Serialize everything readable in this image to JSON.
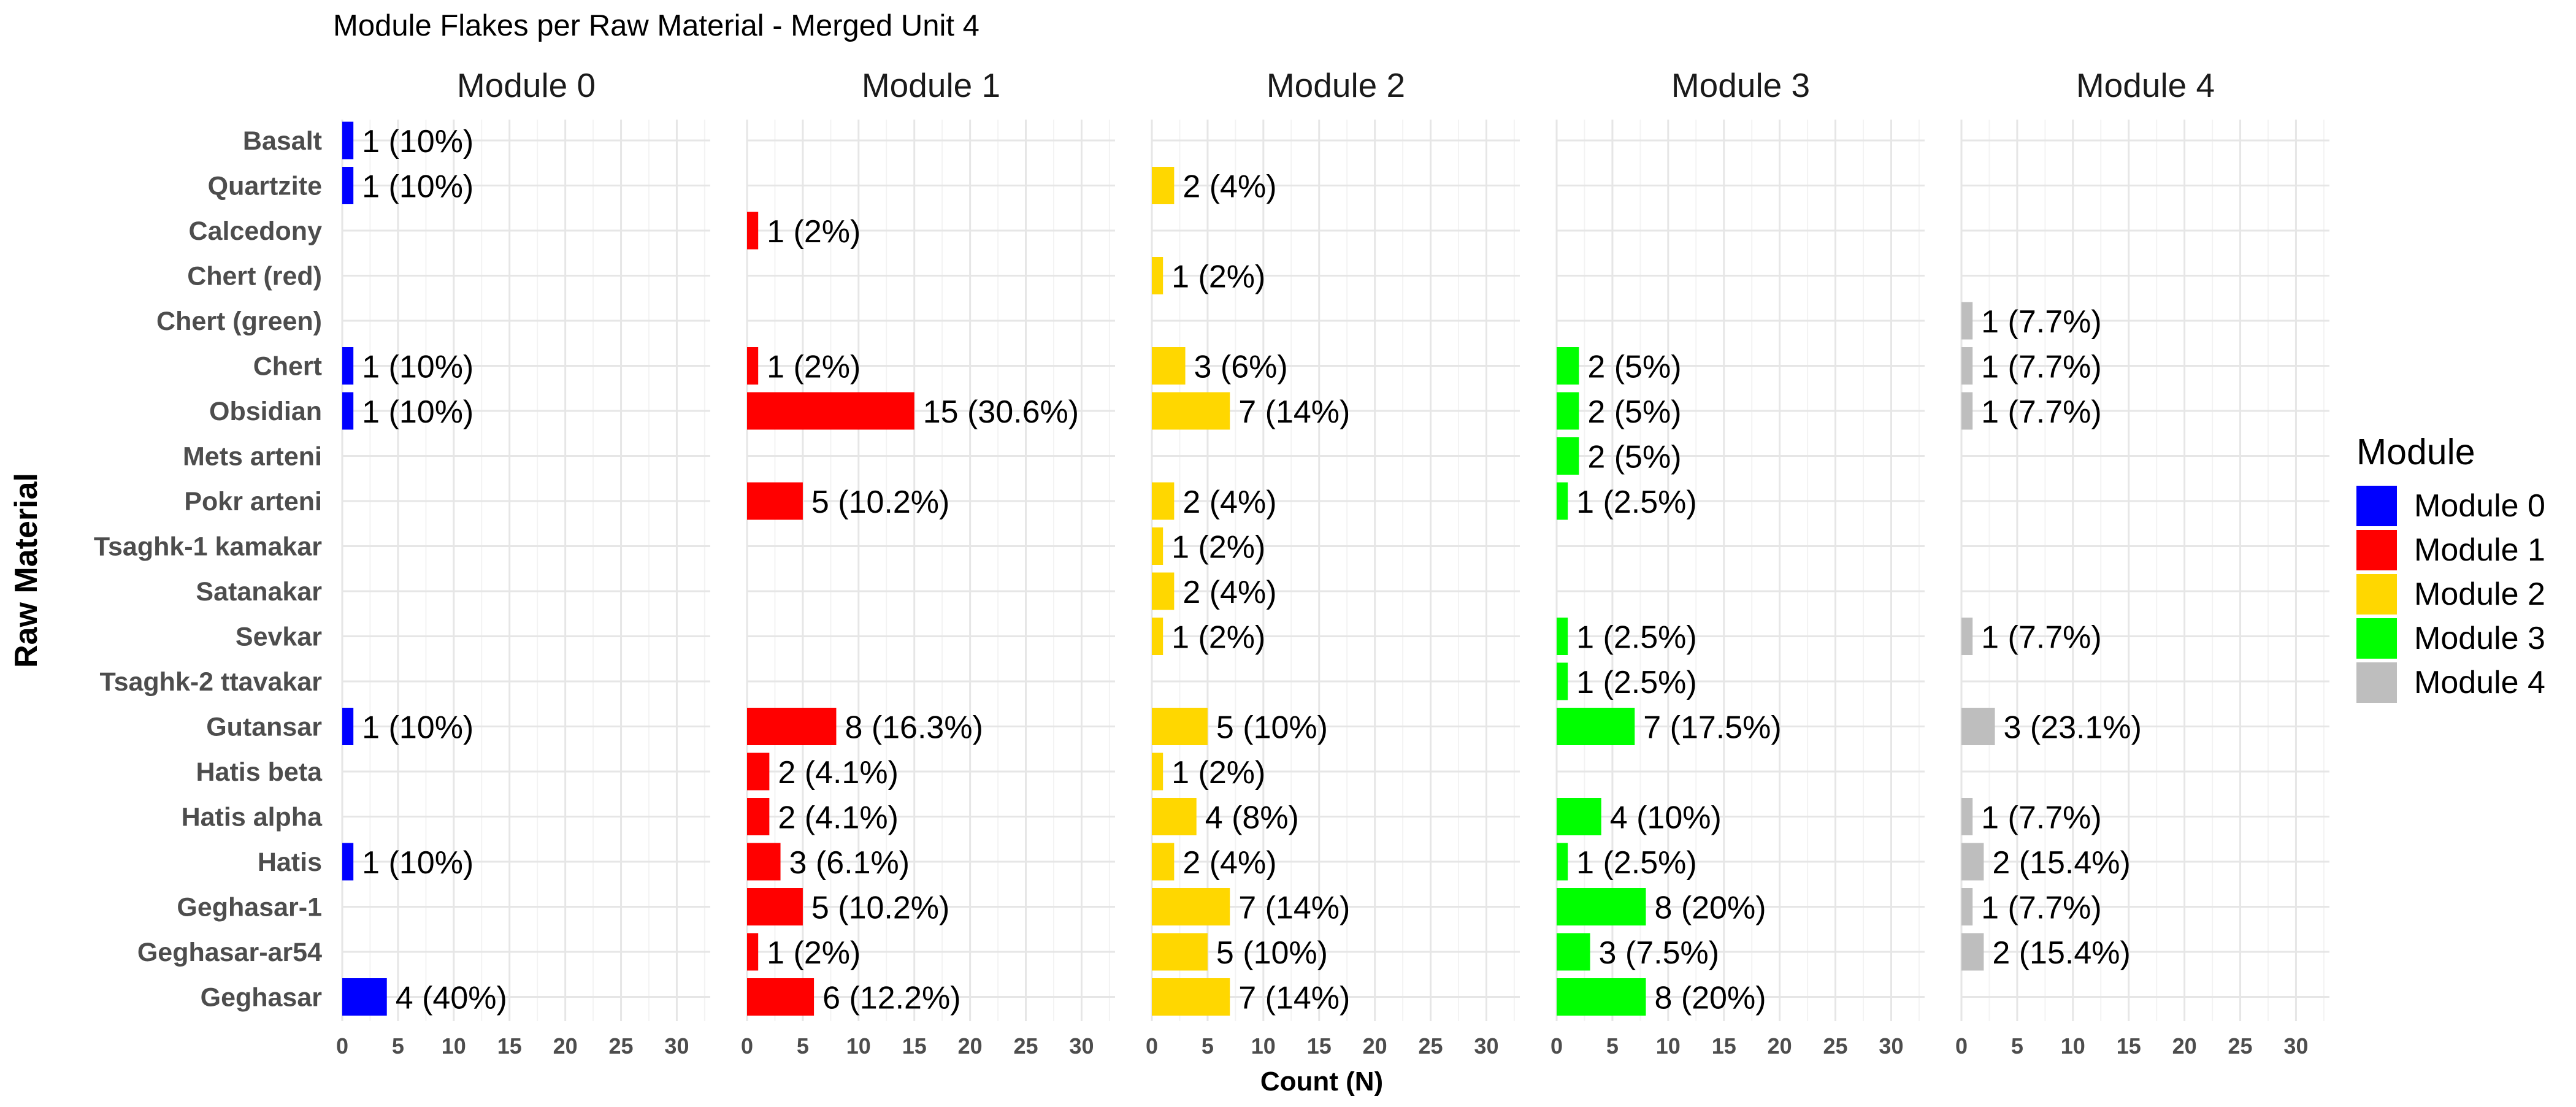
{
  "chart_data": {
    "type": "bar",
    "orientation": "horizontal",
    "title": "Module Flakes per Raw Material - Merged Unit 4",
    "xlabel": "Count (N)",
    "ylabel": "Raw Material",
    "xlim": [
      0,
      33
    ],
    "x_ticks": [
      0,
      5,
      10,
      15,
      20,
      25,
      30
    ],
    "grid": true,
    "legend": {
      "title": "Module",
      "placement": "right",
      "entries": [
        "Module 0",
        "Module 1",
        "Module 2",
        "Module 3",
        "Module 4"
      ]
    },
    "colors": {
      "Module 0": "#0000ff",
      "Module 1": "#ff0000",
      "Module 2": "#ffd700",
      "Module 3": "#00ff00",
      "Module 4": "#bebebe"
    },
    "categories": [
      "Basalt",
      "Quartzite",
      "Calcedony",
      "Chert (red)",
      "Chert (green)",
      "Chert",
      "Obsidian",
      "Mets arteni",
      "Pokr arteni",
      "Tsaghk-1 kamakar",
      "Satanakar",
      "Sevkar",
      "Tsaghk-2 ttavakar",
      "Gutansar",
      "Hatis beta",
      "Hatis alpha",
      "Hatis",
      "Geghasar-1",
      "Geghasar-ar54",
      "Geghasar"
    ],
    "panels": [
      {
        "name": "Module 0",
        "bars": [
          {
            "category": "Basalt",
            "value": 1,
            "label": "1 (10%)"
          },
          {
            "category": "Quartzite",
            "value": 1,
            "label": "1 (10%)"
          },
          {
            "category": "Chert",
            "value": 1,
            "label": "1 (10%)"
          },
          {
            "category": "Obsidian",
            "value": 1,
            "label": "1 (10%)"
          },
          {
            "category": "Gutansar",
            "value": 1,
            "label": "1 (10%)"
          },
          {
            "category": "Hatis",
            "value": 1,
            "label": "1 (10%)"
          },
          {
            "category": "Geghasar",
            "value": 4,
            "label": "4 (40%)"
          }
        ]
      },
      {
        "name": "Module 1",
        "bars": [
          {
            "category": "Calcedony",
            "value": 1,
            "label": "1 (2%)"
          },
          {
            "category": "Chert",
            "value": 1,
            "label": "1 (2%)"
          },
          {
            "category": "Obsidian",
            "value": 15,
            "label": "15 (30.6%)"
          },
          {
            "category": "Pokr arteni",
            "value": 5,
            "label": "5 (10.2%)"
          },
          {
            "category": "Gutansar",
            "value": 8,
            "label": "8 (16.3%)"
          },
          {
            "category": "Hatis beta",
            "value": 2,
            "label": "2 (4.1%)"
          },
          {
            "category": "Hatis alpha",
            "value": 2,
            "label": "2 (4.1%)"
          },
          {
            "category": "Hatis",
            "value": 3,
            "label": "3 (6.1%)"
          },
          {
            "category": "Geghasar-1",
            "value": 5,
            "label": "5 (10.2%)"
          },
          {
            "category": "Geghasar-ar54",
            "value": 1,
            "label": "1 (2%)"
          },
          {
            "category": "Geghasar",
            "value": 6,
            "label": "6 (12.2%)"
          }
        ]
      },
      {
        "name": "Module 2",
        "bars": [
          {
            "category": "Quartzite",
            "value": 2,
            "label": "2 (4%)"
          },
          {
            "category": "Chert (red)",
            "value": 1,
            "label": "1 (2%)"
          },
          {
            "category": "Chert",
            "value": 3,
            "label": "3 (6%)"
          },
          {
            "category": "Obsidian",
            "value": 7,
            "label": "7 (14%)"
          },
          {
            "category": "Pokr arteni",
            "value": 2,
            "label": "2 (4%)"
          },
          {
            "category": "Tsaghk-1 kamakar",
            "value": 1,
            "label": "1 (2%)"
          },
          {
            "category": "Satanakar",
            "value": 2,
            "label": "2 (4%)"
          },
          {
            "category": "Sevkar",
            "value": 1,
            "label": "1 (2%)"
          },
          {
            "category": "Gutansar",
            "value": 5,
            "label": "5 (10%)"
          },
          {
            "category": "Hatis beta",
            "value": 1,
            "label": "1 (2%)"
          },
          {
            "category": "Hatis alpha",
            "value": 4,
            "label": "4 (8%)"
          },
          {
            "category": "Hatis",
            "value": 2,
            "label": "2 (4%)"
          },
          {
            "category": "Geghasar-1",
            "value": 7,
            "label": "7 (14%)"
          },
          {
            "category": "Geghasar-ar54",
            "value": 5,
            "label": "5 (10%)"
          },
          {
            "category": "Geghasar",
            "value": 7,
            "label": "7 (14%)"
          }
        ]
      },
      {
        "name": "Module 3",
        "bars": [
          {
            "category": "Chert",
            "value": 2,
            "label": "2 (5%)"
          },
          {
            "category": "Obsidian",
            "value": 2,
            "label": "2 (5%)"
          },
          {
            "category": "Mets arteni",
            "value": 2,
            "label": "2 (5%)"
          },
          {
            "category": "Pokr arteni",
            "value": 1,
            "label": "1 (2.5%)"
          },
          {
            "category": "Sevkar",
            "value": 1,
            "label": "1 (2.5%)"
          },
          {
            "category": "Tsaghk-2 ttavakar",
            "value": 1,
            "label": "1 (2.5%)"
          },
          {
            "category": "Gutansar",
            "value": 7,
            "label": "7 (17.5%)"
          },
          {
            "category": "Hatis alpha",
            "value": 4,
            "label": "4 (10%)"
          },
          {
            "category": "Hatis",
            "value": 1,
            "label": "1 (2.5%)"
          },
          {
            "category": "Geghasar-1",
            "value": 8,
            "label": "8 (20%)"
          },
          {
            "category": "Geghasar-ar54",
            "value": 3,
            "label": "3 (7.5%)"
          },
          {
            "category": "Geghasar",
            "value": 8,
            "label": "8 (20%)"
          }
        ]
      },
      {
        "name": "Module 4",
        "bars": [
          {
            "category": "Chert (green)",
            "value": 1,
            "label": "1 (7.7%)"
          },
          {
            "category": "Chert",
            "value": 1,
            "label": "1 (7.7%)"
          },
          {
            "category": "Obsidian",
            "value": 1,
            "label": "1 (7.7%)"
          },
          {
            "category": "Sevkar",
            "value": 1,
            "label": "1 (7.7%)"
          },
          {
            "category": "Gutansar",
            "value": 3,
            "label": "3 (23.1%)"
          },
          {
            "category": "Hatis alpha",
            "value": 1,
            "label": "1 (7.7%)"
          },
          {
            "category": "Hatis",
            "value": 2,
            "label": "2 (15.4%)"
          },
          {
            "category": "Geghasar-1",
            "value": 1,
            "label": "1 (7.7%)"
          },
          {
            "category": "Geghasar-ar54",
            "value": 2,
            "label": "2 (15.4%)"
          }
        ]
      }
    ]
  }
}
